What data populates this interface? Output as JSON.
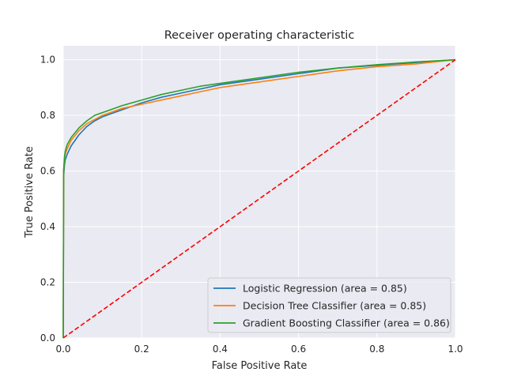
{
  "chart_data": {
    "type": "line",
    "title": "Receiver operating characteristic",
    "xlabel": "False Positive Rate",
    "ylabel": "True Positive Rate",
    "xlim": [
      0.0,
      1.0
    ],
    "ylim": [
      0.0,
      1.05
    ],
    "xticks": [
      0.0,
      0.2,
      0.4,
      0.6,
      0.8,
      1.0
    ],
    "yticks": [
      0.0,
      0.2,
      0.4,
      0.6,
      0.8,
      1.0
    ],
    "xtick_labels": [
      "0.0",
      "0.2",
      "0.4",
      "0.6",
      "0.8",
      "1.0"
    ],
    "ytick_labels": [
      "0.0",
      "0.2",
      "0.4",
      "0.6",
      "0.8",
      "1.0"
    ],
    "grid": true,
    "legend_position": "lower-right",
    "series": [
      {
        "name": "Logistic Regression (area = 0.85)",
        "color": "#1f77b4",
        "style": "solid",
        "x": [
          0.0,
          0.001,
          0.003,
          0.005,
          0.01,
          0.02,
          0.04,
          0.06,
          0.08,
          0.1,
          0.15,
          0.2,
          0.25,
          0.3,
          0.35,
          0.4,
          0.45,
          0.5,
          0.6,
          0.7,
          0.8,
          0.9,
          1.0
        ],
        "y": [
          0.0,
          0.58,
          0.62,
          0.64,
          0.66,
          0.69,
          0.73,
          0.76,
          0.78,
          0.795,
          0.82,
          0.845,
          0.865,
          0.88,
          0.895,
          0.91,
          0.92,
          0.93,
          0.95,
          0.97,
          0.98,
          0.99,
          1.0
        ]
      },
      {
        "name": "Decision Tree Classifier (area = 0.85)",
        "color": "#ff7f0e",
        "style": "solid",
        "x": [
          0.0,
          0.001,
          0.003,
          0.005,
          0.01,
          0.02,
          0.04,
          0.06,
          0.08,
          0.1,
          0.15,
          0.2,
          0.25,
          0.3,
          0.35,
          0.4,
          0.45,
          0.5,
          0.6,
          0.7,
          0.8,
          0.9,
          1.0
        ],
        "y": [
          0.0,
          0.6,
          0.64,
          0.66,
          0.68,
          0.71,
          0.745,
          0.77,
          0.785,
          0.8,
          0.825,
          0.84,
          0.855,
          0.87,
          0.885,
          0.9,
          0.91,
          0.92,
          0.94,
          0.96,
          0.975,
          0.985,
          1.0
        ]
      },
      {
        "name": "Gradient Boosting Classifier (area = 0.86)",
        "color": "#2ca02c",
        "style": "solid",
        "x": [
          0.0,
          0.001,
          0.003,
          0.005,
          0.01,
          0.02,
          0.04,
          0.06,
          0.08,
          0.1,
          0.15,
          0.2,
          0.25,
          0.3,
          0.35,
          0.4,
          0.45,
          0.5,
          0.6,
          0.7,
          0.8,
          0.9,
          1.0
        ],
        "y": [
          0.0,
          0.6,
          0.65,
          0.67,
          0.695,
          0.72,
          0.755,
          0.78,
          0.8,
          0.81,
          0.835,
          0.855,
          0.875,
          0.89,
          0.905,
          0.915,
          0.925,
          0.935,
          0.955,
          0.97,
          0.982,
          0.992,
          1.0
        ]
      },
      {
        "name": "",
        "color": "#ff0000",
        "style": "dashed",
        "x": [
          0.0,
          1.0
        ],
        "y": [
          0.0,
          1.0
        ]
      }
    ]
  }
}
